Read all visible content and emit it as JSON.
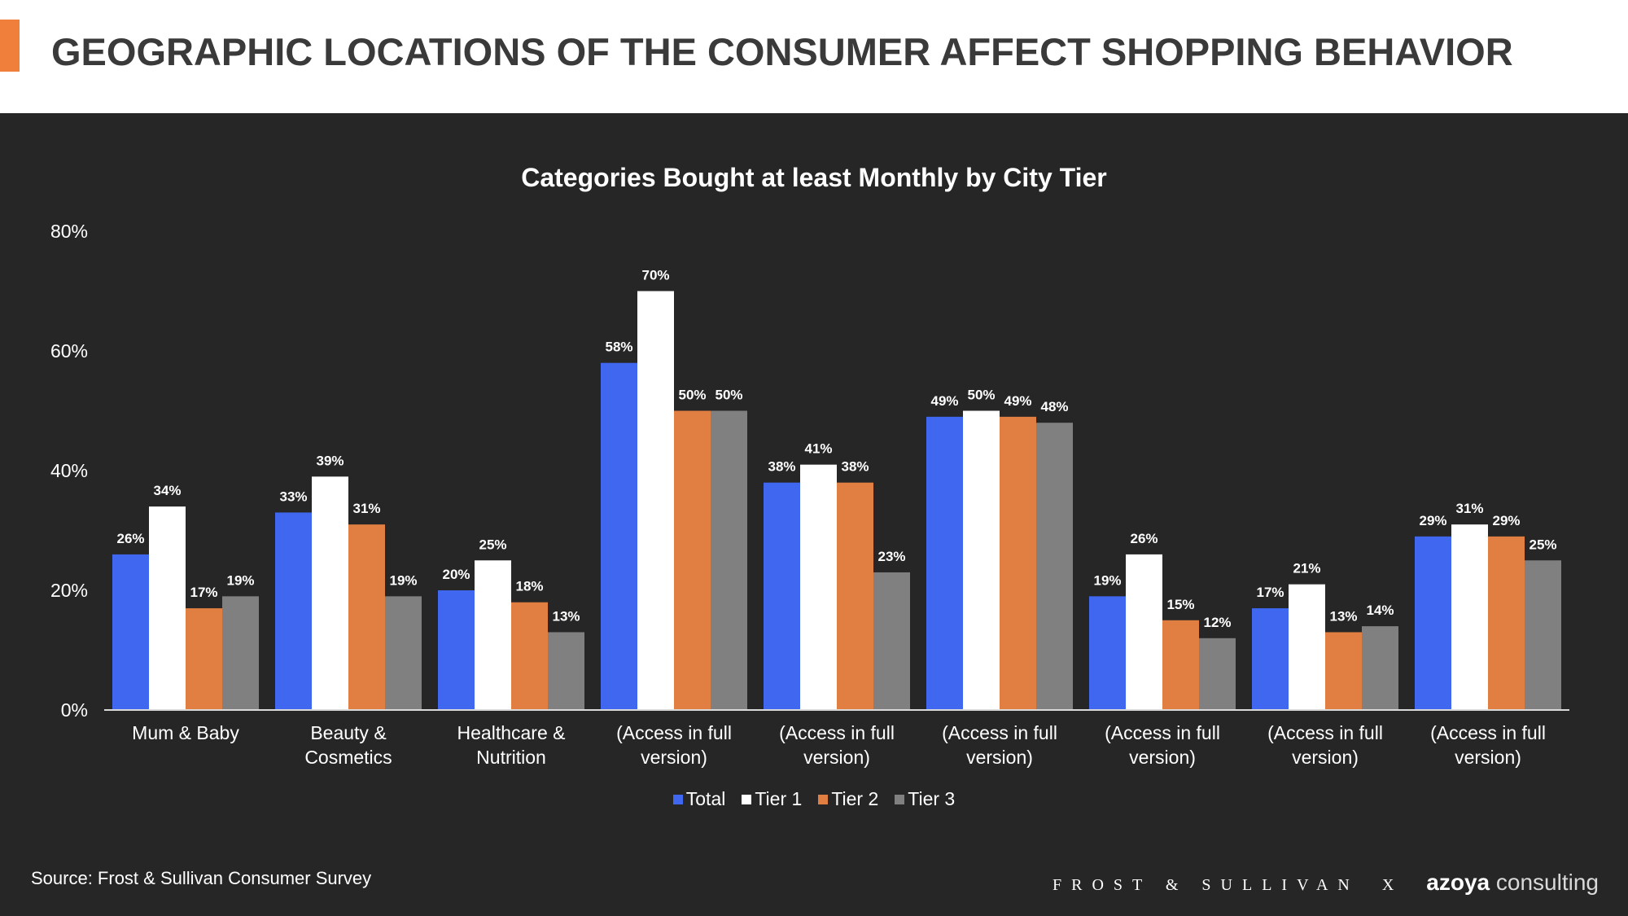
{
  "header": {
    "title": "GEOGRAPHIC LOCATIONS OF THE CONSUMER AFFECT SHOPPING BEHAVIOR",
    "accent_color": "#f07f3c"
  },
  "chart_data": {
    "type": "bar",
    "title": "Categories Bought at least Monthly by City Tier",
    "xlabel": "",
    "ylabel": "",
    "ylim": [
      0,
      80
    ],
    "yticks": [
      "0%",
      "20%",
      "40%",
      "60%",
      "80%"
    ],
    "grid": false,
    "legend_position": "bottom",
    "categories": [
      [
        "Mum & Baby"
      ],
      [
        "Beauty &",
        "Cosmetics"
      ],
      [
        "Healthcare &",
        "Nutrition"
      ],
      [
        "(Access in full",
        "version)"
      ],
      [
        "(Access in full",
        "version)"
      ],
      [
        "(Access in full",
        "version)"
      ],
      [
        "(Access in full",
        "version)"
      ],
      [
        "(Access in full",
        "version)"
      ],
      [
        "(Access in full",
        "version)"
      ]
    ],
    "series": [
      {
        "name": "Total",
        "color": "#3f67f0",
        "values": [
          26,
          33,
          20,
          58,
          38,
          49,
          19,
          17,
          29
        ]
      },
      {
        "name": "Tier 1",
        "color": "#ffffff",
        "values": [
          34,
          39,
          25,
          70,
          41,
          50,
          26,
          21,
          31
        ]
      },
      {
        "name": "Tier 2",
        "color": "#e07f41",
        "values": [
          17,
          31,
          18,
          50,
          38,
          49,
          15,
          13,
          29
        ]
      },
      {
        "name": "Tier 3",
        "color": "#808080",
        "values": [
          19,
          19,
          13,
          50,
          23,
          48,
          12,
          14,
          25
        ]
      }
    ]
  },
  "footer": {
    "source": "Source: Frost & Sullivan Consumer Survey",
    "logo_fs": "FROST & SULLIVAN",
    "logo_x": "X",
    "logo_azoya_bold": "azoya",
    "logo_azoya_light": "consulting"
  }
}
